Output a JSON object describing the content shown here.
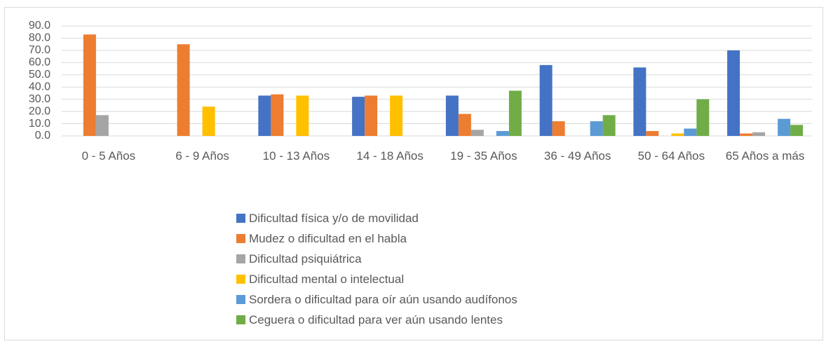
{
  "chart_data": {
    "type": "bar",
    "categories": [
      "0 - 5 Años",
      "6 - 9 Años",
      "10 - 13 Años",
      "14 - 18 Años",
      "19 - 35 Años",
      "36 - 49 Años",
      "50 - 64 Años",
      "65 Años a más"
    ],
    "series": [
      {
        "name": "Dificultad física y/o de movilidad",
        "color": "#4472c4",
        "values": [
          0,
          0,
          33,
          32,
          33,
          58,
          56,
          70
        ]
      },
      {
        "name": "Mudez o dificultad en el habla",
        "color": "#ed7d31",
        "values": [
          83,
          75,
          34,
          33,
          18,
          12,
          4,
          2
        ]
      },
      {
        "name": "Dificultad psiquiátrica",
        "color": "#a5a5a5",
        "values": [
          17,
          0,
          0,
          0,
          5,
          0,
          0,
          3
        ]
      },
      {
        "name": "Dificultad mental o intelectual",
        "color": "#ffc000",
        "values": [
          0,
          24,
          33,
          33,
          0,
          0,
          2,
          0
        ]
      },
      {
        "name": "Sordera o dificultad para oír aún usando audífonos",
        "color": "#5b9bd5",
        "values": [
          0,
          0,
          0,
          0,
          4,
          12,
          6,
          14
        ]
      },
      {
        "name": "Ceguera o dificultad para ver aún usando lentes",
        "color": "#70ad47",
        "values": [
          0,
          0,
          0,
          0,
          37,
          17,
          30,
          9
        ]
      }
    ],
    "ylim": [
      0,
      90
    ],
    "yticks": [
      {
        "value": 0,
        "label": "0.0"
      },
      {
        "value": 10,
        "label": "10.0"
      },
      {
        "value": 20,
        "label": "20.0"
      },
      {
        "value": 30,
        "label": "30.0"
      },
      {
        "value": 40,
        "label": "40.0"
      },
      {
        "value": 50,
        "label": "50.0"
      },
      {
        "value": 60,
        "label": "60.0"
      },
      {
        "value": 70,
        "label": "70.0"
      },
      {
        "value": 80,
        "label": "80.0"
      },
      {
        "value": 90,
        "label": "90.0"
      }
    ],
    "grid": true,
    "legend": "bottom"
  }
}
